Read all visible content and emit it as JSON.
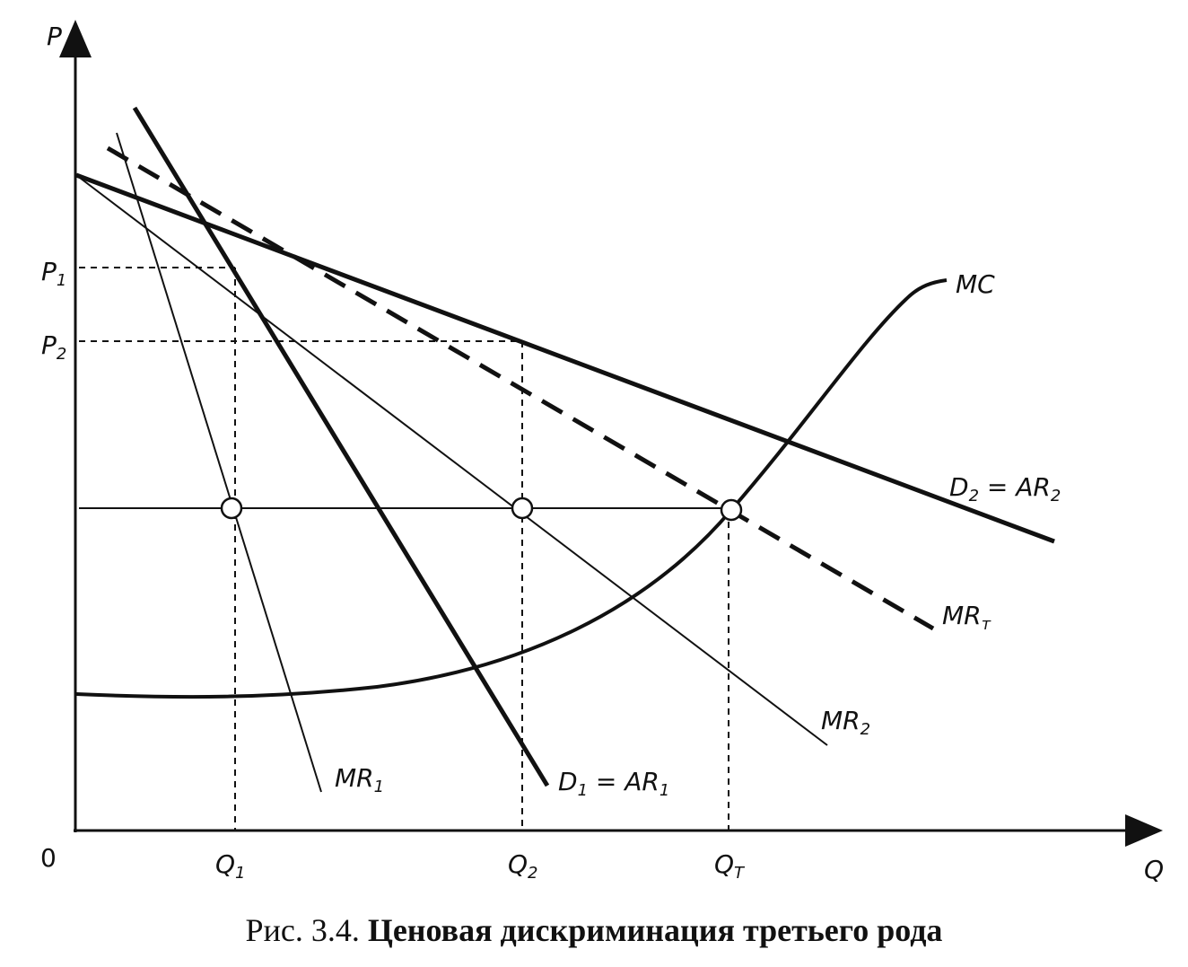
{
  "axes": {
    "y": "P",
    "x": "Q",
    "origin": "0"
  },
  "labels": {
    "p1": {
      "main": "P",
      "sub": "1"
    },
    "p2": {
      "main": "P",
      "sub": "2"
    },
    "q1": {
      "main": "Q",
      "sub": "1"
    },
    "q2": {
      "main": "Q",
      "sub": "2"
    },
    "qt": {
      "main": "Q",
      "sub": "T"
    },
    "mc": {
      "main": "MC"
    },
    "d2": {
      "main": "D",
      "sub": "2",
      "eq": " = AR",
      "sub2": "2"
    },
    "d1": {
      "main": "D",
      "sub": "1",
      "eq": " = AR",
      "sub2": "1"
    },
    "mrt": {
      "main": "MR",
      "sub": "т"
    },
    "mr2": {
      "main": "MR",
      "sub": "2"
    },
    "mr1": {
      "main": "MR",
      "sub": "1"
    }
  },
  "caption": {
    "number": "Рис. 3.4.",
    "title": "Ценовая дискриминация третьего рода"
  }
}
